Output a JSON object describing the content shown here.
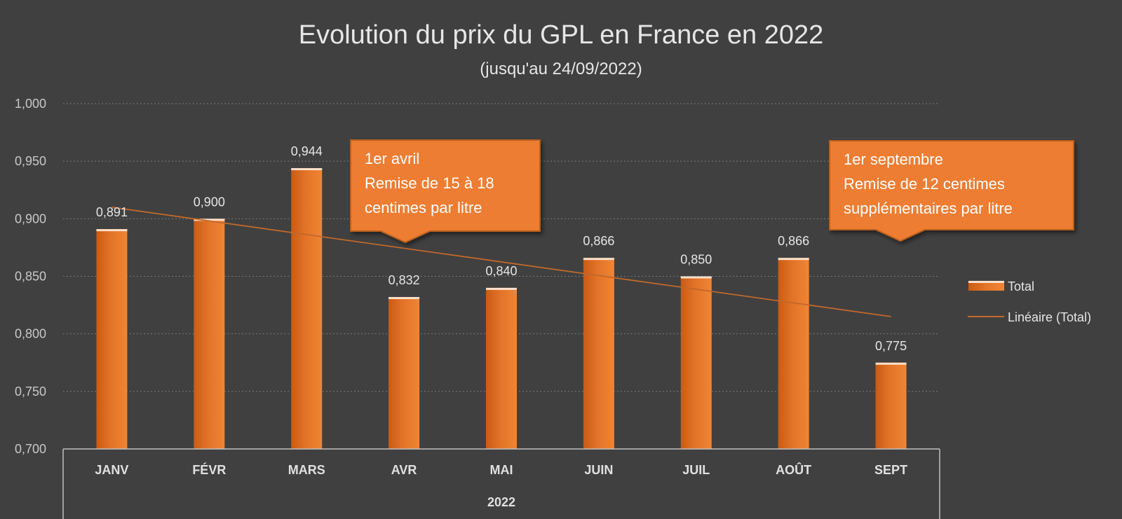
{
  "chart_data": {
    "type": "bar",
    "title": "Evolution du prix du GPL en France  en 2022",
    "subtitle": "(jusqu'au 24/09/2022)",
    "categories": [
      "JANV",
      "FÉVR",
      "MARS",
      "AVR",
      "MAI",
      "JUIN",
      "JUIL",
      "AOÛT",
      "SEPT"
    ],
    "group_label": "2022",
    "series": [
      {
        "name": "Total",
        "values": [
          0.891,
          0.9,
          0.944,
          0.832,
          0.84,
          0.866,
          0.85,
          0.866,
          0.775
        ],
        "color": "#ED7D31"
      }
    ],
    "data_labels": [
      "0,891",
      "0,900",
      "0,944",
      "0,832",
      "0,840",
      "0,866",
      "0,850",
      "0,866",
      "0,775"
    ],
    "trendline": {
      "name": "Linéaire (Total)",
      "type": "linear",
      "start": 0.91,
      "end": 0.815,
      "color": "#C0682A"
    },
    "ylim": [
      0.7,
      1.0
    ],
    "yticks": [
      0.7,
      0.75,
      0.8,
      0.85,
      0.9,
      0.95,
      1.0
    ],
    "ytick_labels": [
      "0,700",
      "0,750",
      "0,800",
      "0,850",
      "0,900",
      "0,950",
      "1,000"
    ],
    "xlabel": "",
    "ylabel": "",
    "grid": true,
    "legend_position": "right",
    "annotations": [
      {
        "category": "AVR",
        "lines": [
          "1er avril",
          "Remise de 15 à 18",
          "centimes par litre"
        ]
      },
      {
        "category": "SEPT",
        "lines": [
          "1er septembre",
          "Remise de 12 centimes",
          "supplémentaires par litre"
        ]
      }
    ]
  },
  "colors": {
    "background": "#404040",
    "bar": "#ED7D31",
    "bar_dark": "#C55A11",
    "callout": "#ED7D31",
    "callout_border": "#B8611E",
    "grid": "#7a7a7a",
    "axis": "#bfbfbf"
  }
}
